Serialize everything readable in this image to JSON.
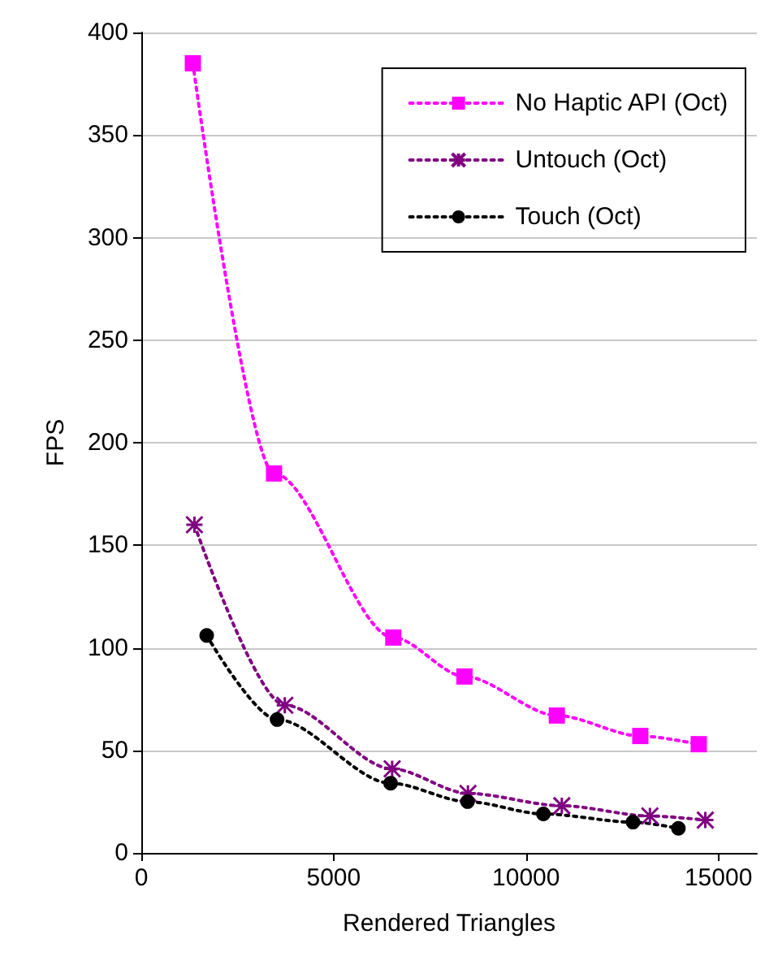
{
  "chart_data": {
    "type": "line",
    "xlabel": "Rendered Triangles",
    "ylabel": "FPS",
    "xlim": [
      0,
      16000
    ],
    "xticks": [
      0,
      5000,
      10000,
      15000
    ],
    "ylim": [
      0,
      400
    ],
    "yticks": [
      0,
      50,
      100,
      150,
      200,
      250,
      300,
      350,
      400
    ],
    "grid": "y",
    "legend": "top right",
    "line_style": "dotted",
    "series": [
      {
        "name": "No Haptic API (Oct)",
        "color": "#ff00ff",
        "marker": "square",
        "x": [
          1340,
          3450,
          6550,
          8400,
          10800,
          12970,
          14490
        ],
        "values": [
          385,
          185,
          105,
          86,
          67,
          57,
          53
        ]
      },
      {
        "name": "Untouch (Oct)",
        "color": "#800080",
        "marker": "cross",
        "x": [
          1380,
          3730,
          6520,
          8490,
          10930,
          13220,
          14660
        ],
        "values": [
          160,
          72,
          41,
          29,
          23,
          18,
          16
        ]
      },
      {
        "name": "Touch (Oct)",
        "color": "#000000",
        "marker": "circle",
        "x": [
          1700,
          3530,
          6480,
          8480,
          10450,
          12780,
          13960
        ],
        "values": [
          106,
          65,
          34,
          25,
          19,
          15,
          12
        ]
      }
    ]
  }
}
